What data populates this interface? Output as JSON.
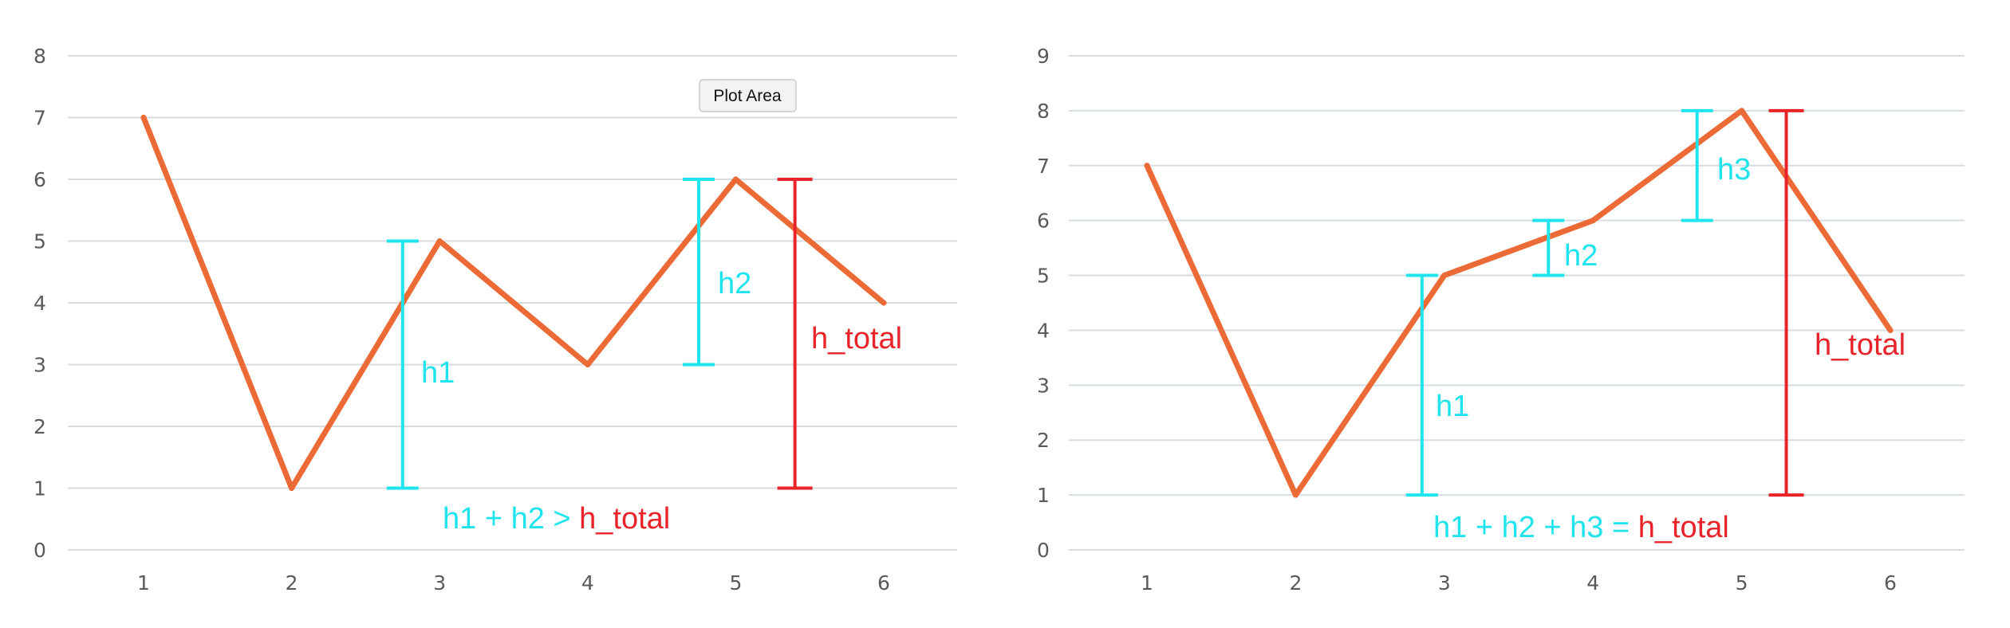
{
  "colors": {
    "line": "#ec6a35",
    "cyan": "#1fe4ee",
    "red": "#e8242a",
    "grid": "#d5dde1",
    "tick": "#5a5a5a"
  },
  "tooltip": {
    "label": "Plot Area"
  },
  "chart_data": [
    {
      "type": "line",
      "x": [
        1,
        2,
        3,
        4,
        5,
        6
      ],
      "values": [
        7,
        1,
        5,
        3,
        6,
        4
      ],
      "ylim": [
        0,
        8
      ],
      "yticks": [
        "0",
        "1",
        "2",
        "3",
        "4",
        "5",
        "6",
        "7",
        "8"
      ],
      "xticks": [
        "1",
        "2",
        "3",
        "4",
        "5",
        "6"
      ],
      "grid": true,
      "annotations": {
        "bars": [
          {
            "label": "h1",
            "color": "cyan",
            "x": 2.75,
            "from": 1,
            "to": 5
          },
          {
            "label": "h2",
            "color": "cyan",
            "x": 4.75,
            "from": 3,
            "to": 6
          },
          {
            "label": "h_total",
            "color": "red",
            "x": 5.4,
            "from": 1,
            "to": 6
          }
        ],
        "equation": {
          "parts": [
            {
              "text": "h1 + h2 > ",
              "color": "cyan"
            },
            {
              "text": "h_total",
              "color": "red"
            }
          ]
        }
      }
    },
    {
      "type": "line",
      "x": [
        1,
        2,
        3,
        4,
        5,
        6
      ],
      "values": [
        7,
        1,
        5,
        6,
        8,
        4
      ],
      "ylim": [
        0,
        9
      ],
      "yticks": [
        "0",
        "1",
        "2",
        "3",
        "4",
        "5",
        "6",
        "7",
        "8",
        "9"
      ],
      "xticks": [
        "1",
        "2",
        "3",
        "4",
        "5",
        "6"
      ],
      "grid": true,
      "annotations": {
        "bars": [
          {
            "label": "h1",
            "color": "cyan",
            "x": 2.85,
            "from": 1,
            "to": 5
          },
          {
            "label": "h2",
            "color": "cyan",
            "x": 3.7,
            "from": 5,
            "to": 6
          },
          {
            "label": "h3",
            "color": "cyan",
            "x": 4.7,
            "from": 6,
            "to": 8
          },
          {
            "label": "h_total",
            "color": "red",
            "x": 5.3,
            "from": 1,
            "to": 8
          }
        ],
        "equation": {
          "parts": [
            {
              "text": "h1 + h2 + h3 = ",
              "color": "cyan"
            },
            {
              "text": "h_total",
              "color": "red"
            }
          ]
        }
      }
    }
  ]
}
